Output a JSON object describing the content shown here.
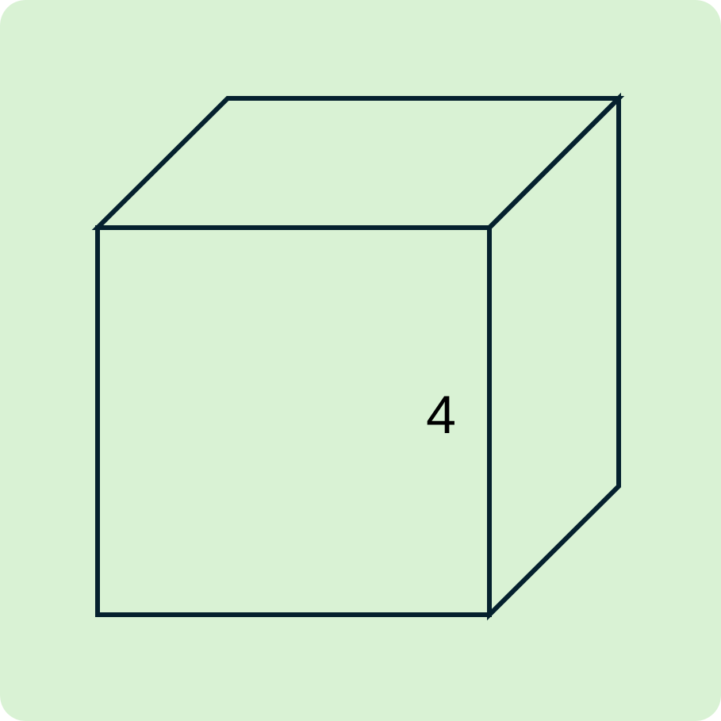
{
  "diagram": {
    "shape": "cube",
    "edge_label": "4",
    "colors": {
      "background": "#d9f2d4",
      "stroke": "#05212e",
      "label": "#000000"
    }
  }
}
